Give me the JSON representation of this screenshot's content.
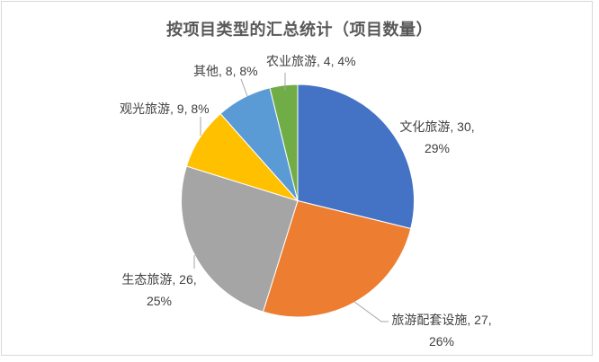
{
  "chart_data": {
    "type": "pie",
    "title": "按项目类型的汇总统计（项目数量）",
    "legend_position": "none",
    "label_style": "outside, format: name, value, percent",
    "start_angle_deg": 0,
    "direction": "clockwise",
    "slices": [
      {
        "id": "cultural-tourism",
        "name": "文化旅游",
        "value": 30,
        "percent": "29%",
        "color": "#4472C4",
        "label_lines": [
          "文化旅游, 30,",
          "29%"
        ]
      },
      {
        "id": "tourism-facilities",
        "name": "旅游配套设施",
        "value": 27,
        "percent": "26%",
        "color": "#ED7D31",
        "label_lines": [
          "旅游配套设施, 27,",
          "26%"
        ]
      },
      {
        "id": "eco-tourism",
        "name": "生态旅游",
        "value": 26,
        "percent": "25%",
        "color": "#A5A5A5",
        "label_lines": [
          "生态旅游, 26,",
          "25%"
        ]
      },
      {
        "id": "sightseeing-tourism",
        "name": "观光旅游",
        "value": 9,
        "percent": "8%",
        "color": "#FFC000",
        "label_lines": [
          "观光旅游, 9, 8%"
        ]
      },
      {
        "id": "other",
        "name": "其他",
        "value": 8,
        "percent": "8%",
        "color": "#5B9BD5",
        "label_lines": [
          "其他, 8, 8%"
        ]
      },
      {
        "id": "agri-tourism",
        "name": "农业旅游",
        "value": 4,
        "percent": "4%",
        "color": "#70AD47",
        "label_lines": [
          "农业旅游, 4, 4%"
        ]
      }
    ],
    "colors": {
      "title_text": "#595959",
      "label_text": "#404040",
      "leader_line": "#A6A6A6",
      "chart_border": "#D9D9D9",
      "background": "#FFFFFF",
      "slice_separator": "#FFFFFF"
    }
  }
}
